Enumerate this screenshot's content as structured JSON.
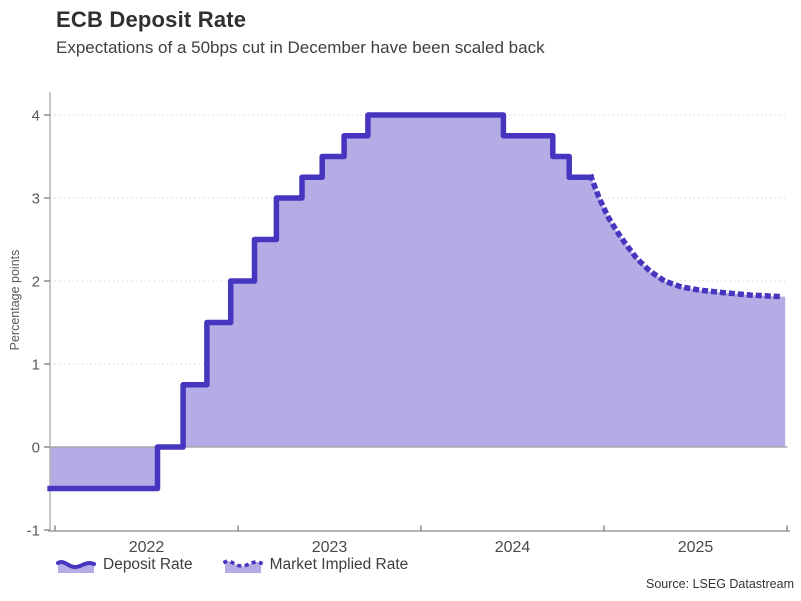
{
  "chart_data": {
    "type": "area",
    "title": "ECB Deposit Rate",
    "subtitle": "Expectations of a 50bps cut in December have been scaled back",
    "ylabel": "Percentage points",
    "source": "Source: LSEG Datastream",
    "x_domain": [
      2021.97,
      2026.0
    ],
    "ylim": [
      -1,
      4
    ],
    "y_ticks": [
      -1,
      0,
      1,
      2,
      3,
      4
    ],
    "x_boundary_ticks": [
      2022,
      2023,
      2024,
      2025,
      2026
    ],
    "x_tick_labels": [
      {
        "label": "2022",
        "t": 2022.5
      },
      {
        "label": "2023",
        "t": 2023.5
      },
      {
        "label": "2024",
        "t": 2024.5
      },
      {
        "label": "2025",
        "t": 2025.5
      }
    ],
    "grid": "dotted horizontal at 1,2,3,4; solid zero line",
    "legend_position": "bottom-left",
    "series": [
      {
        "name": "Deposit Rate",
        "style": "step-solid",
        "points": [
          [
            2021.973,
            -0.5
          ],
          [
            2022.56,
            0.0
          ],
          [
            2022.7,
            0.75
          ],
          [
            2022.83,
            1.5
          ],
          [
            2022.96,
            2.0
          ],
          [
            2023.09,
            2.5
          ],
          [
            2023.21,
            3.0
          ],
          [
            2023.35,
            3.25
          ],
          [
            2023.46,
            3.5
          ],
          [
            2023.58,
            3.75
          ],
          [
            2023.71,
            4.0
          ],
          [
            2024.45,
            3.75
          ],
          [
            2024.72,
            3.5
          ],
          [
            2024.81,
            3.25
          ],
          [
            2024.93,
            3.25
          ]
        ]
      },
      {
        "name": "Market Implied Rate",
        "style": "dotted",
        "points": [
          [
            2024.93,
            3.25
          ],
          [
            2024.97,
            3.02
          ],
          [
            2025.02,
            2.78
          ],
          [
            2025.07,
            2.6
          ],
          [
            2025.12,
            2.44
          ],
          [
            2025.18,
            2.27
          ],
          [
            2025.25,
            2.12
          ],
          [
            2025.33,
            2.0
          ],
          [
            2025.42,
            1.93
          ],
          [
            2025.52,
            1.89
          ],
          [
            2025.65,
            1.86
          ],
          [
            2025.8,
            1.83
          ],
          [
            2025.99,
            1.81
          ]
        ]
      }
    ],
    "colors": {
      "line": "#4636bf",
      "fill": "#b5abe5",
      "grid": "#8a8a8a",
      "zero_line": "#9e9e9e",
      "axis": "#b4b4b4",
      "tick": "#8c8c8c",
      "tick_text": "#595959",
      "x_tick_text": "#4a4a4a"
    }
  }
}
